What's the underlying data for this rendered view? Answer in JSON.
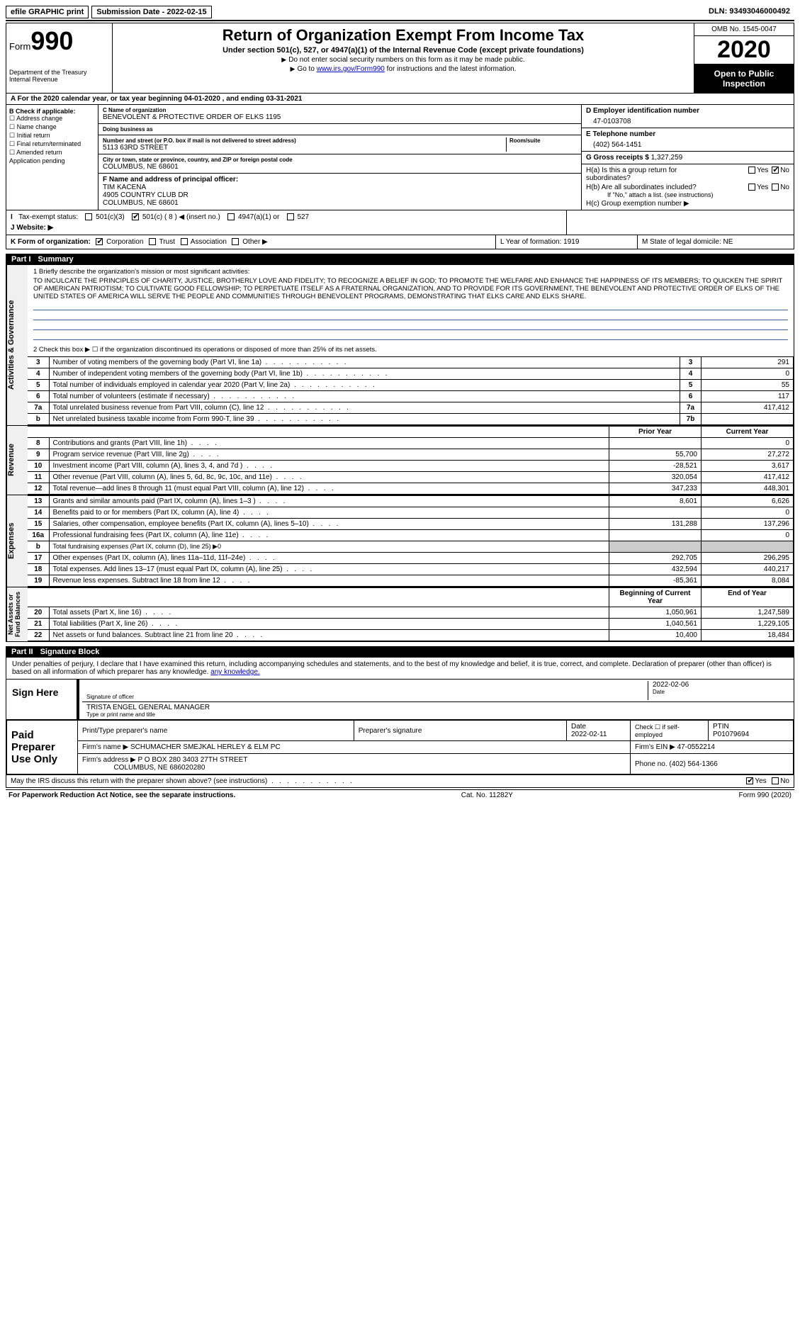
{
  "topbar": {
    "efile": "efile GRAPHIC print",
    "submission_label": "Submission Date - ",
    "submission_date": "2022-02-15",
    "dln_label": "DLN: ",
    "dln": "93493046000492"
  },
  "header": {
    "form_word": "Form",
    "form_num": "990",
    "dept": "Department of the Treasury\nInternal Revenue",
    "title": "Return of Organization Exempt From Income Tax",
    "subtitle": "Under section 501(c), 527, or 4947(a)(1) of the Internal Revenue Code (except private foundations)",
    "note1": "Do not enter social security numbers on this form as it may be made public.",
    "note2_pre": "Go to ",
    "note2_link": "www.irs.gov/Form990",
    "note2_post": " for instructions and the latest information.",
    "omb": "OMB No. 1545-0047",
    "year": "2020",
    "inspection": "Open to Public Inspection"
  },
  "row_a": "For the 2020 calendar year, or tax year beginning 04-01-2020   , and ending 03-31-2021",
  "box_b": {
    "header": "B Check if applicable:",
    "opts": [
      "Address change",
      "Name change",
      "Initial return",
      "Final return/terminated",
      "Amended return",
      "Application pending"
    ]
  },
  "box_c": {
    "name_label": "C Name of organization",
    "name": "BENEVOLENT & PROTECTIVE ORDER OF ELKS 1195",
    "dba_label": "Doing business as",
    "dba": "",
    "street_label": "Number and street (or P.O. box if mail is not delivered to street address)",
    "street": "5113 63RD STREET",
    "room_label": "Room/suite",
    "city_label": "City or town, state or province, country, and ZIP or foreign postal code",
    "city": "COLUMBUS, NE  68601"
  },
  "box_d": {
    "label": "D Employer identification number",
    "value": "47-0103708"
  },
  "box_e": {
    "label": "E Telephone number",
    "value": "(402) 564-1451"
  },
  "box_g": {
    "label": "G Gross receipts $ ",
    "value": "1,327,259"
  },
  "box_f": {
    "label": "F  Name and address of principal officer:",
    "name": "TIM KACENA",
    "addr1": "4905 COUNTRY CLUB DR",
    "addr2": "COLUMBUS, NE  68601"
  },
  "box_h": {
    "ha": "H(a)  Is this a group return for subordinates?",
    "hb": "H(b)  Are all subordinates included?",
    "hb_note": "If \"No,\" attach a list. (see instructions)",
    "hc": "H(c)  Group exemption number ▶",
    "yes": "Yes",
    "no": "No"
  },
  "row_i": {
    "label": "Tax-exempt status:",
    "opts": [
      "501(c)(3)",
      "501(c) ( 8 ) ◀ (insert no.)",
      "4947(a)(1) or",
      "527"
    ]
  },
  "row_j": {
    "label": "J   Website: ▶"
  },
  "row_k": {
    "label": "K Form of organization:",
    "opts": [
      "Corporation",
      "Trust",
      "Association",
      "Other ▶"
    ],
    "l": "L Year of formation: 1919",
    "m": "M State of legal domicile: NE"
  },
  "part1": {
    "num": "Part I",
    "title": "Summary"
  },
  "mission": {
    "q1": "1   Briefly describe the organization's mission or most significant activities:",
    "text": "TO INCULCATE THE PRINCIPLES OF CHARITY, JUSTICE, BROTHERLY LOVE AND FIDELITY; TO RECOGNIZE A BELIEF IN GOD; TO PROMOTE THE WELFARE AND ENHANCE THE HAPPINESS OF ITS MEMBERS; TO QUICKEN THE SPIRIT OF AMERICAN PATRIOTISM; TO CULTIVATE GOOD FELLOWSHIP; TO PERPETUATE ITSELF AS A FRATERNAL ORGANIZATION, AND TO PROVIDE FOR ITS GOVERNMENT, THE BENEVOLENT AND PROTECTIVE ORDER OF ELKS OF THE UNITED STATES OF AMERICA WILL SERVE THE PEOPLE AND COMMUNITIES THROUGH BENEVOLENT PROGRAMS, DEMONSTRATING THAT ELKS CARE AND ELKS SHARE.",
    "q2": "2   Check this box ▶ ☐  if the organization discontinued its operations or disposed of more than 25% of its net assets."
  },
  "governance": [
    {
      "n": "3",
      "d": "Number of voting members of the governing body (Part VI, line 1a)",
      "v": "291"
    },
    {
      "n": "4",
      "d": "Number of independent voting members of the governing body (Part VI, line 1b)",
      "v": "0"
    },
    {
      "n": "5",
      "d": "Total number of individuals employed in calendar year 2020 (Part V, line 2a)",
      "v": "55"
    },
    {
      "n": "6",
      "d": "Total number of volunteers (estimate if necessary)",
      "v": "117"
    },
    {
      "n": "7a",
      "d": "Total unrelated business revenue from Part VIII, column (C), line 12",
      "v": "417,412"
    },
    {
      "n": "b",
      "d": "Net unrelated business taxable income from Form 990-T, line 39",
      "altn": "7b",
      "v": ""
    }
  ],
  "colhdr": {
    "prior": "Prior Year",
    "current": "Current Year",
    "bcy": "Beginning of Current Year",
    "eoy": "End of Year"
  },
  "revenue": [
    {
      "n": "8",
      "d": "Contributions and grants (Part VIII, line 1h)",
      "p": "",
      "c": "0"
    },
    {
      "n": "9",
      "d": "Program service revenue (Part VIII, line 2g)",
      "p": "55,700",
      "c": "27,272"
    },
    {
      "n": "10",
      "d": "Investment income (Part VIII, column (A), lines 3, 4, and 7d )",
      "p": "-28,521",
      "c": "3,617"
    },
    {
      "n": "11",
      "d": "Other revenue (Part VIII, column (A), lines 5, 6d, 8c, 9c, 10c, and 11e)",
      "p": "320,054",
      "c": "417,412"
    },
    {
      "n": "12",
      "d": "Total revenue—add lines 8 through 11 (must equal Part VIII, column (A), line 12)",
      "p": "347,233",
      "c": "448,301"
    }
  ],
  "expenses": [
    {
      "n": "13",
      "d": "Grants and similar amounts paid (Part IX, column (A), lines 1–3 )",
      "p": "8,601",
      "c": "6,626"
    },
    {
      "n": "14",
      "d": "Benefits paid to or for members (Part IX, column (A), line 4)",
      "p": "",
      "c": "0"
    },
    {
      "n": "15",
      "d": "Salaries, other compensation, employee benefits (Part IX, column (A), lines 5–10)",
      "p": "131,288",
      "c": "137,296"
    },
    {
      "n": "16a",
      "d": "Professional fundraising fees (Part IX, column (A), line 11e)",
      "p": "",
      "c": "0"
    },
    {
      "n": "b",
      "d": "Total fundraising expenses (Part IX, column (D), line 25) ▶0",
      "gray": true
    },
    {
      "n": "17",
      "d": "Other expenses (Part IX, column (A), lines 11a–11d, 11f–24e)",
      "p": "292,705",
      "c": "296,295"
    },
    {
      "n": "18",
      "d": "Total expenses. Add lines 13–17 (must equal Part IX, column (A), line 25)",
      "p": "432,594",
      "c": "440,217"
    },
    {
      "n": "19",
      "d": "Revenue less expenses. Subtract line 18 from line 12",
      "p": "-85,361",
      "c": "8,084"
    }
  ],
  "netassets": [
    {
      "n": "20",
      "d": "Total assets (Part X, line 16)",
      "p": "1,050,961",
      "c": "1,247,589"
    },
    {
      "n": "21",
      "d": "Total liabilities (Part X, line 26)",
      "p": "1,040,561",
      "c": "1,229,105"
    },
    {
      "n": "22",
      "d": "Net assets or fund balances. Subtract line 21 from line 20",
      "p": "10,400",
      "c": "18,484"
    }
  ],
  "vtabs": {
    "ag": "Activities & Governance",
    "rev": "Revenue",
    "exp": "Expenses",
    "na": "Net Assets or\nFund Balances"
  },
  "part2": {
    "num": "Part II",
    "title": "Signature Block"
  },
  "sig": {
    "declaration": "Under penalties of perjury, I declare that I have examined this return, including accompanying schedules and statements, and to the best of my knowledge and belief, it is true, correct, and complete. Declaration of preparer (other than officer) is based on all information of which preparer has any knowledge.",
    "sign_here": "Sign Here",
    "sig_officer": "Signature of officer",
    "date_label": "Date",
    "sig_date": "2022-02-06",
    "name": "TRISTA ENGEL  GENERAL MANAGER",
    "name_label": "Type or print name and title"
  },
  "prep": {
    "label": "Paid Preparer Use Only",
    "h1": "Print/Type preparer's name",
    "h2": "Preparer's signature",
    "h3": "Date",
    "date": "2022-02-11",
    "h4": "Check ☐ if self-employed",
    "h5": "PTIN",
    "ptin": "P01079694",
    "firm_label": "Firm's name      ▶",
    "firm": "SCHUMACHER SMEJKAL HERLEY & ELM PC",
    "ein_label": "Firm's EIN ▶",
    "ein": "47-0552214",
    "addr_label": "Firm's address ▶",
    "addr1": "P O BOX 280 3403 27TH STREET",
    "addr2": "COLUMBUS, NE  686020280",
    "phone_label": "Phone no. ",
    "phone": "(402) 564-1366"
  },
  "discuss": {
    "q": "May the IRS discuss this return with the preparer shown above? (see instructions)",
    "yes": "Yes",
    "no": "No"
  },
  "footer": {
    "l": "For Paperwork Reduction Act Notice, see the separate instructions.",
    "m": "Cat. No. 11282Y",
    "r": "Form 990 (2020)"
  }
}
